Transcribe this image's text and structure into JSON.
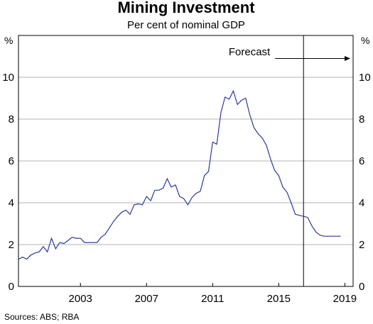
{
  "chart_data": {
    "type": "line",
    "title": "Mining Investment",
    "subtitle": "Per cent of nominal GDP",
    "y_unit_left": "%",
    "y_unit_right": "%",
    "ylim": [
      0,
      12
    ],
    "y_ticks": [
      "0",
      "2",
      "4",
      "6",
      "8",
      "10"
    ],
    "xlim": [
      1999.75,
      2020.0
    ],
    "x_ticks": [
      "2003",
      "2007",
      "2011",
      "2015",
      "2019"
    ],
    "grid": "horizontal",
    "line_color": "#2b3a9e",
    "forecast_label": "Forecast",
    "forecast_start": 2017.0,
    "source": "Sources:   ABS; RBA",
    "series": [
      {
        "x": [
          1999.75,
          2000.0,
          2000.25,
          2000.5,
          2000.75,
          2001.0,
          2001.25,
          2001.5,
          2001.75,
          2002.0,
          2002.25,
          2002.5,
          2002.75,
          2003.0,
          2003.25,
          2003.5,
          2003.75,
          2004.0,
          2004.25,
          2004.5,
          2004.75,
          2005.0,
          2005.25,
          2005.5,
          2005.75,
          2006.0,
          2006.25,
          2006.5,
          2006.75,
          2007.0,
          2007.25,
          2007.5,
          2007.75,
          2008.0,
          2008.25,
          2008.5,
          2008.75,
          2009.0,
          2009.25,
          2009.5,
          2009.75,
          2010.0,
          2010.25,
          2010.5,
          2010.75,
          2011.0,
          2011.25,
          2011.5,
          2011.75,
          2012.0,
          2012.25,
          2012.5,
          2012.75,
          2013.0,
          2013.25,
          2013.5,
          2013.75,
          2014.0,
          2014.25,
          2014.5,
          2014.75,
          2015.0,
          2015.25,
          2015.5,
          2015.75,
          2016.0,
          2016.25,
          2016.5,
          2016.75,
          2017.0,
          2017.25,
          2017.5,
          2017.75,
          2018.0,
          2018.25,
          2018.5,
          2018.75,
          2019.0,
          2019.25
        ],
        "y": [
          1.3,
          1.4,
          1.3,
          1.5,
          1.6,
          1.65,
          1.9,
          1.65,
          2.3,
          1.8,
          2.1,
          2.05,
          2.2,
          2.35,
          2.3,
          2.3,
          2.1,
          2.1,
          2.1,
          2.1,
          2.35,
          2.5,
          2.8,
          3.1,
          3.35,
          3.55,
          3.65,
          3.45,
          3.9,
          3.95,
          3.9,
          4.3,
          4.1,
          4.6,
          4.6,
          4.7,
          5.15,
          4.75,
          4.85,
          4.3,
          4.2,
          3.9,
          4.25,
          4.45,
          4.55,
          5.3,
          5.5,
          6.9,
          6.8,
          8.3,
          9.05,
          8.95,
          9.35,
          8.7,
          8.9,
          9.0,
          8.2,
          7.6,
          7.3,
          7.1,
          6.75,
          6.1,
          5.55,
          5.3,
          4.75,
          4.5,
          4.0,
          3.45,
          3.4,
          3.35,
          3.3,
          2.9,
          2.6,
          2.45,
          2.4,
          2.4,
          2.4,
          2.4,
          2.4
        ]
      }
    ]
  }
}
